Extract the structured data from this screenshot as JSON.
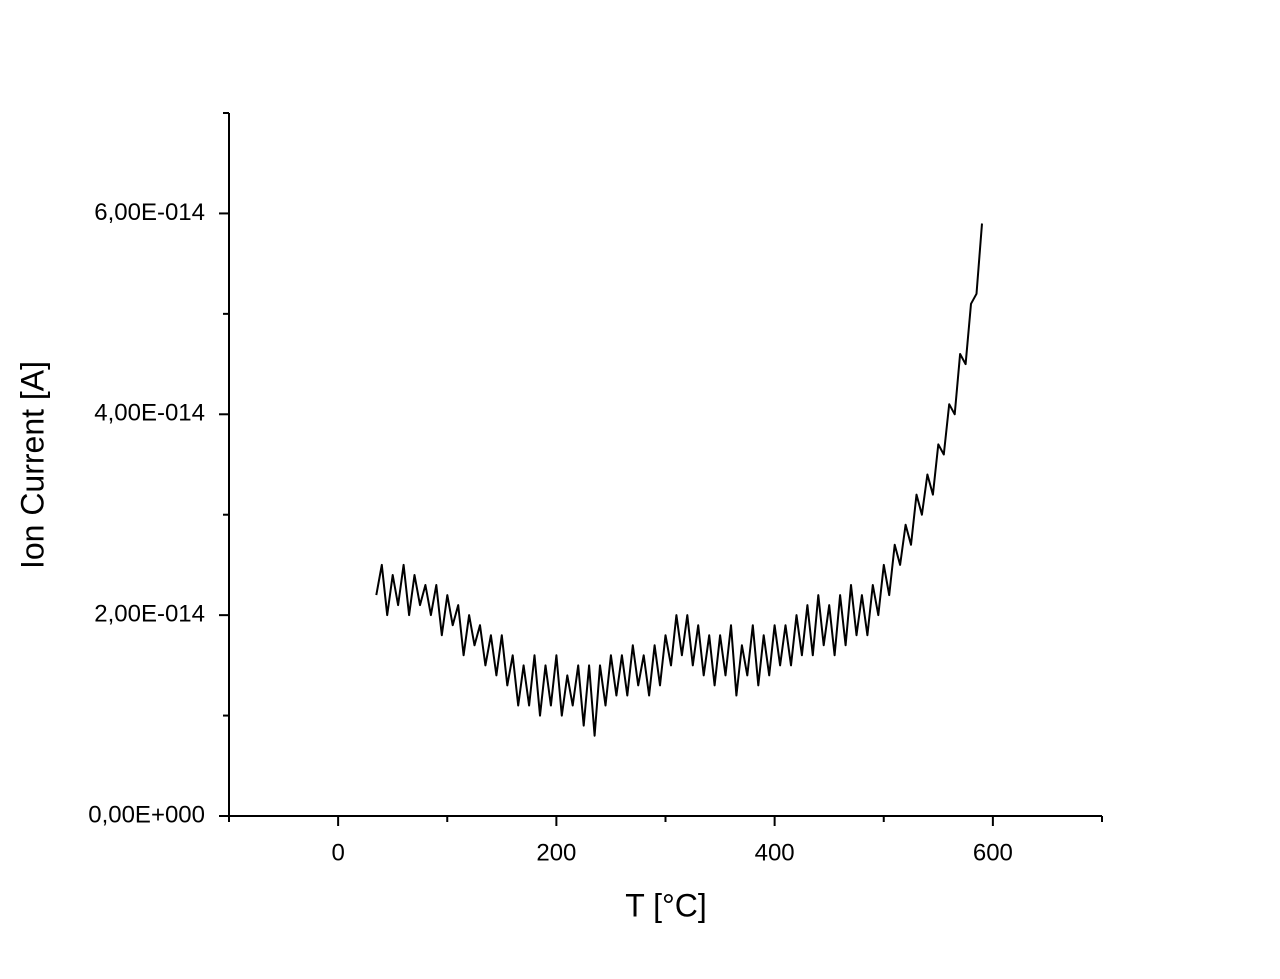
{
  "chart_data": {
    "type": "line",
    "x_label": "T [°C]",
    "y_label": "Ion Current [A]",
    "xlim": [
      -100,
      700
    ],
    "ylim": [
      0,
      7e-14
    ],
    "xticks": [
      0,
      200,
      400,
      600
    ],
    "xminorticks": [
      -100,
      100,
      300,
      500,
      700
    ],
    "yticks": [
      {
        "value": 0,
        "label": "0,00E+000"
      },
      {
        "value": 2e-14,
        "label": "2,00E-014"
      },
      {
        "value": 4e-14,
        "label": "4,00E-014"
      },
      {
        "value": 6e-14,
        "label": "6,00E-014"
      }
    ],
    "yminorticks": [
      1e-14,
      3e-14,
      5e-14,
      7e-14
    ],
    "series": [
      {
        "color": "#000000",
        "x": [
          35,
          40,
          45,
          50,
          55,
          60,
          65,
          70,
          75,
          80,
          85,
          90,
          95,
          100,
          105,
          110,
          115,
          120,
          125,
          130,
          135,
          140,
          145,
          150,
          155,
          160,
          165,
          170,
          175,
          180,
          185,
          190,
          195,
          200,
          205,
          210,
          215,
          220,
          225,
          230,
          235,
          240,
          245,
          250,
          255,
          260,
          265,
          270,
          275,
          280,
          285,
          290,
          295,
          300,
          305,
          310,
          315,
          320,
          325,
          330,
          335,
          340,
          345,
          350,
          355,
          360,
          365,
          370,
          375,
          380,
          385,
          390,
          395,
          400,
          405,
          410,
          415,
          420,
          425,
          430,
          435,
          440,
          445,
          450,
          455,
          460,
          465,
          470,
          475,
          480,
          485,
          490,
          495,
          500,
          505,
          510,
          515,
          520,
          525,
          530,
          535,
          540,
          545,
          550,
          555,
          560,
          565,
          570,
          575,
          580,
          585,
          590
        ],
        "values": [
          2.2e-14,
          2.5e-14,
          2e-14,
          2.4e-14,
          2.1e-14,
          2.5e-14,
          2e-14,
          2.4e-14,
          2.1e-14,
          2.3e-14,
          2e-14,
          2.3e-14,
          1.8e-14,
          2.2e-14,
          1.9e-14,
          2.1e-14,
          1.6e-14,
          2e-14,
          1.7e-14,
          1.9e-14,
          1.5e-14,
          1.8e-14,
          1.4e-14,
          1.8e-14,
          1.3e-14,
          1.6e-14,
          1.1e-14,
          1.5e-14,
          1.1e-14,
          1.6e-14,
          1e-14,
          1.5e-14,
          1.1e-14,
          1.6e-14,
          1e-14,
          1.4e-14,
          1.1e-14,
          1.5e-14,
          9e-15,
          1.5e-14,
          8e-15,
          1.5e-14,
          1.1e-14,
          1.6e-14,
          1.2e-14,
          1.6e-14,
          1.2e-14,
          1.7e-14,
          1.3e-14,
          1.6e-14,
          1.2e-14,
          1.7e-14,
          1.3e-14,
          1.8e-14,
          1.5e-14,
          2e-14,
          1.6e-14,
          2e-14,
          1.5e-14,
          1.9e-14,
          1.4e-14,
          1.8e-14,
          1.3e-14,
          1.8e-14,
          1.4e-14,
          1.9e-14,
          1.2e-14,
          1.7e-14,
          1.4e-14,
          1.9e-14,
          1.3e-14,
          1.8e-14,
          1.4e-14,
          1.9e-14,
          1.5e-14,
          1.9e-14,
          1.5e-14,
          2e-14,
          1.6e-14,
          2.1e-14,
          1.6e-14,
          2.2e-14,
          1.7e-14,
          2.1e-14,
          1.6e-14,
          2.2e-14,
          1.7e-14,
          2.3e-14,
          1.8e-14,
          2.2e-14,
          1.8e-14,
          2.3e-14,
          2e-14,
          2.5e-14,
          2.2e-14,
          2.7e-14,
          2.5e-14,
          2.9e-14,
          2.7e-14,
          3.2e-14,
          3e-14,
          3.4e-14,
          3.2e-14,
          3.7e-14,
          3.6e-14,
          4.1e-14,
          4e-14,
          4.6e-14,
          4.5e-14,
          5.1e-14,
          5.2e-14,
          5.9e-14
        ]
      }
    ]
  }
}
